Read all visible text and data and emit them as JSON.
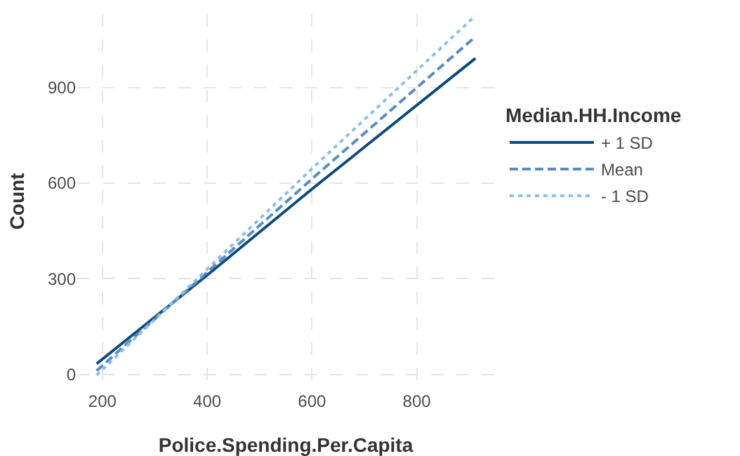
{
  "chart_data": {
    "type": "line",
    "xlabel": "Police.Spending.Per.Capita",
    "ylabel": "Count",
    "legend_title": "Median.HH.Income",
    "xlim": [
      152,
      948
    ],
    "xticks": [
      200,
      400,
      600,
      800
    ],
    "ylim": [
      -45,
      1130
    ],
    "yticks": [
      0,
      300,
      600,
      900
    ],
    "grid": true,
    "legend": "right",
    "marker": "none",
    "series": [
      {
        "name": "+ 1 SD",
        "color": "#0e4a7b",
        "line_style": "solid",
        "x": [
          189,
          400,
          600,
          912
        ],
        "values": [
          33,
          311,
          581,
          991
        ]
      },
      {
        "name": "Mean",
        "color": "#5b8cbf",
        "line_style": "dashed",
        "x": [
          189,
          400,
          600,
          912
        ],
        "values": [
          11,
          320,
          613,
          1059
        ]
      },
      {
        "name": "- 1 SD",
        "color": "#8dc0ea",
        "line_style": "dotted",
        "x": [
          189,
          400,
          600,
          912
        ],
        "values": [
          -3,
          330,
          645,
          1125
        ]
      }
    ]
  }
}
